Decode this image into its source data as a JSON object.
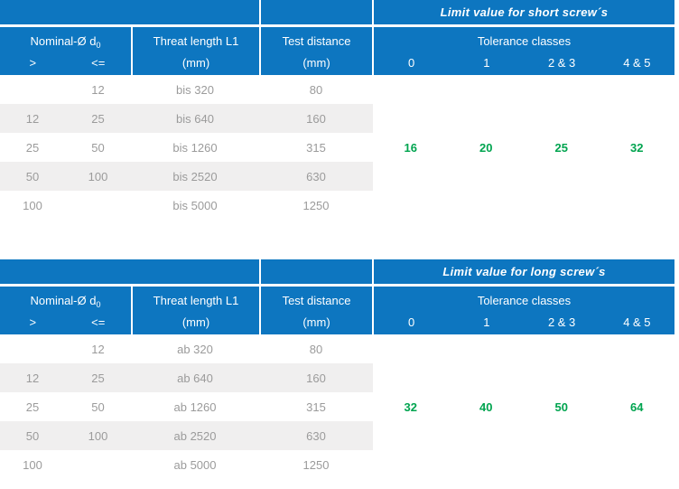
{
  "colors": {
    "header_blue": "#0d76c0",
    "stripe_gray": "#f0efef",
    "body_text_gray": "#9b9b9b",
    "accent_green": "#00a44f"
  },
  "header": {
    "nominal": "Nominal-Ø d",
    "nominal_sub": "0",
    "gt": ">",
    "lte": "<=",
    "thread": "Threat length L1",
    "test": "Test distance",
    "unit": "(mm)",
    "tolerance": "Tolerance classes",
    "classes": [
      "0",
      "1",
      "2 & 3",
      "4 & 5"
    ]
  },
  "tables": [
    {
      "title": "Limit value for short screw´s",
      "rows": [
        {
          "gt": "",
          "lte": "12",
          "thread": "bis 320",
          "test": "80"
        },
        {
          "gt": "12",
          "lte": "25",
          "thread": "bis 640",
          "test": "160"
        },
        {
          "gt": "25",
          "lte": "50",
          "thread": "bis 1260",
          "test": "315"
        },
        {
          "gt": "50",
          "lte": "100",
          "thread": "bis 2520",
          "test": "630"
        },
        {
          "gt": "100",
          "lte": "",
          "thread": "bis 5000",
          "test": "1250"
        }
      ],
      "limits": [
        "16",
        "20",
        "25",
        "32"
      ]
    },
    {
      "title": "Limit value for long screw´s",
      "rows": [
        {
          "gt": "",
          "lte": "12",
          "thread": "ab 320",
          "test": "80"
        },
        {
          "gt": "12",
          "lte": "25",
          "thread": "ab 640",
          "test": "160"
        },
        {
          "gt": "25",
          "lte": "50",
          "thread": "ab 1260",
          "test": "315"
        },
        {
          "gt": "50",
          "lte": "100",
          "thread": "ab 2520",
          "test": "630"
        },
        {
          "gt": "100",
          "lte": "",
          "thread": "ab 5000",
          "test": "1250"
        }
      ],
      "limits": [
        "32",
        "40",
        "50",
        "64"
      ]
    }
  ]
}
